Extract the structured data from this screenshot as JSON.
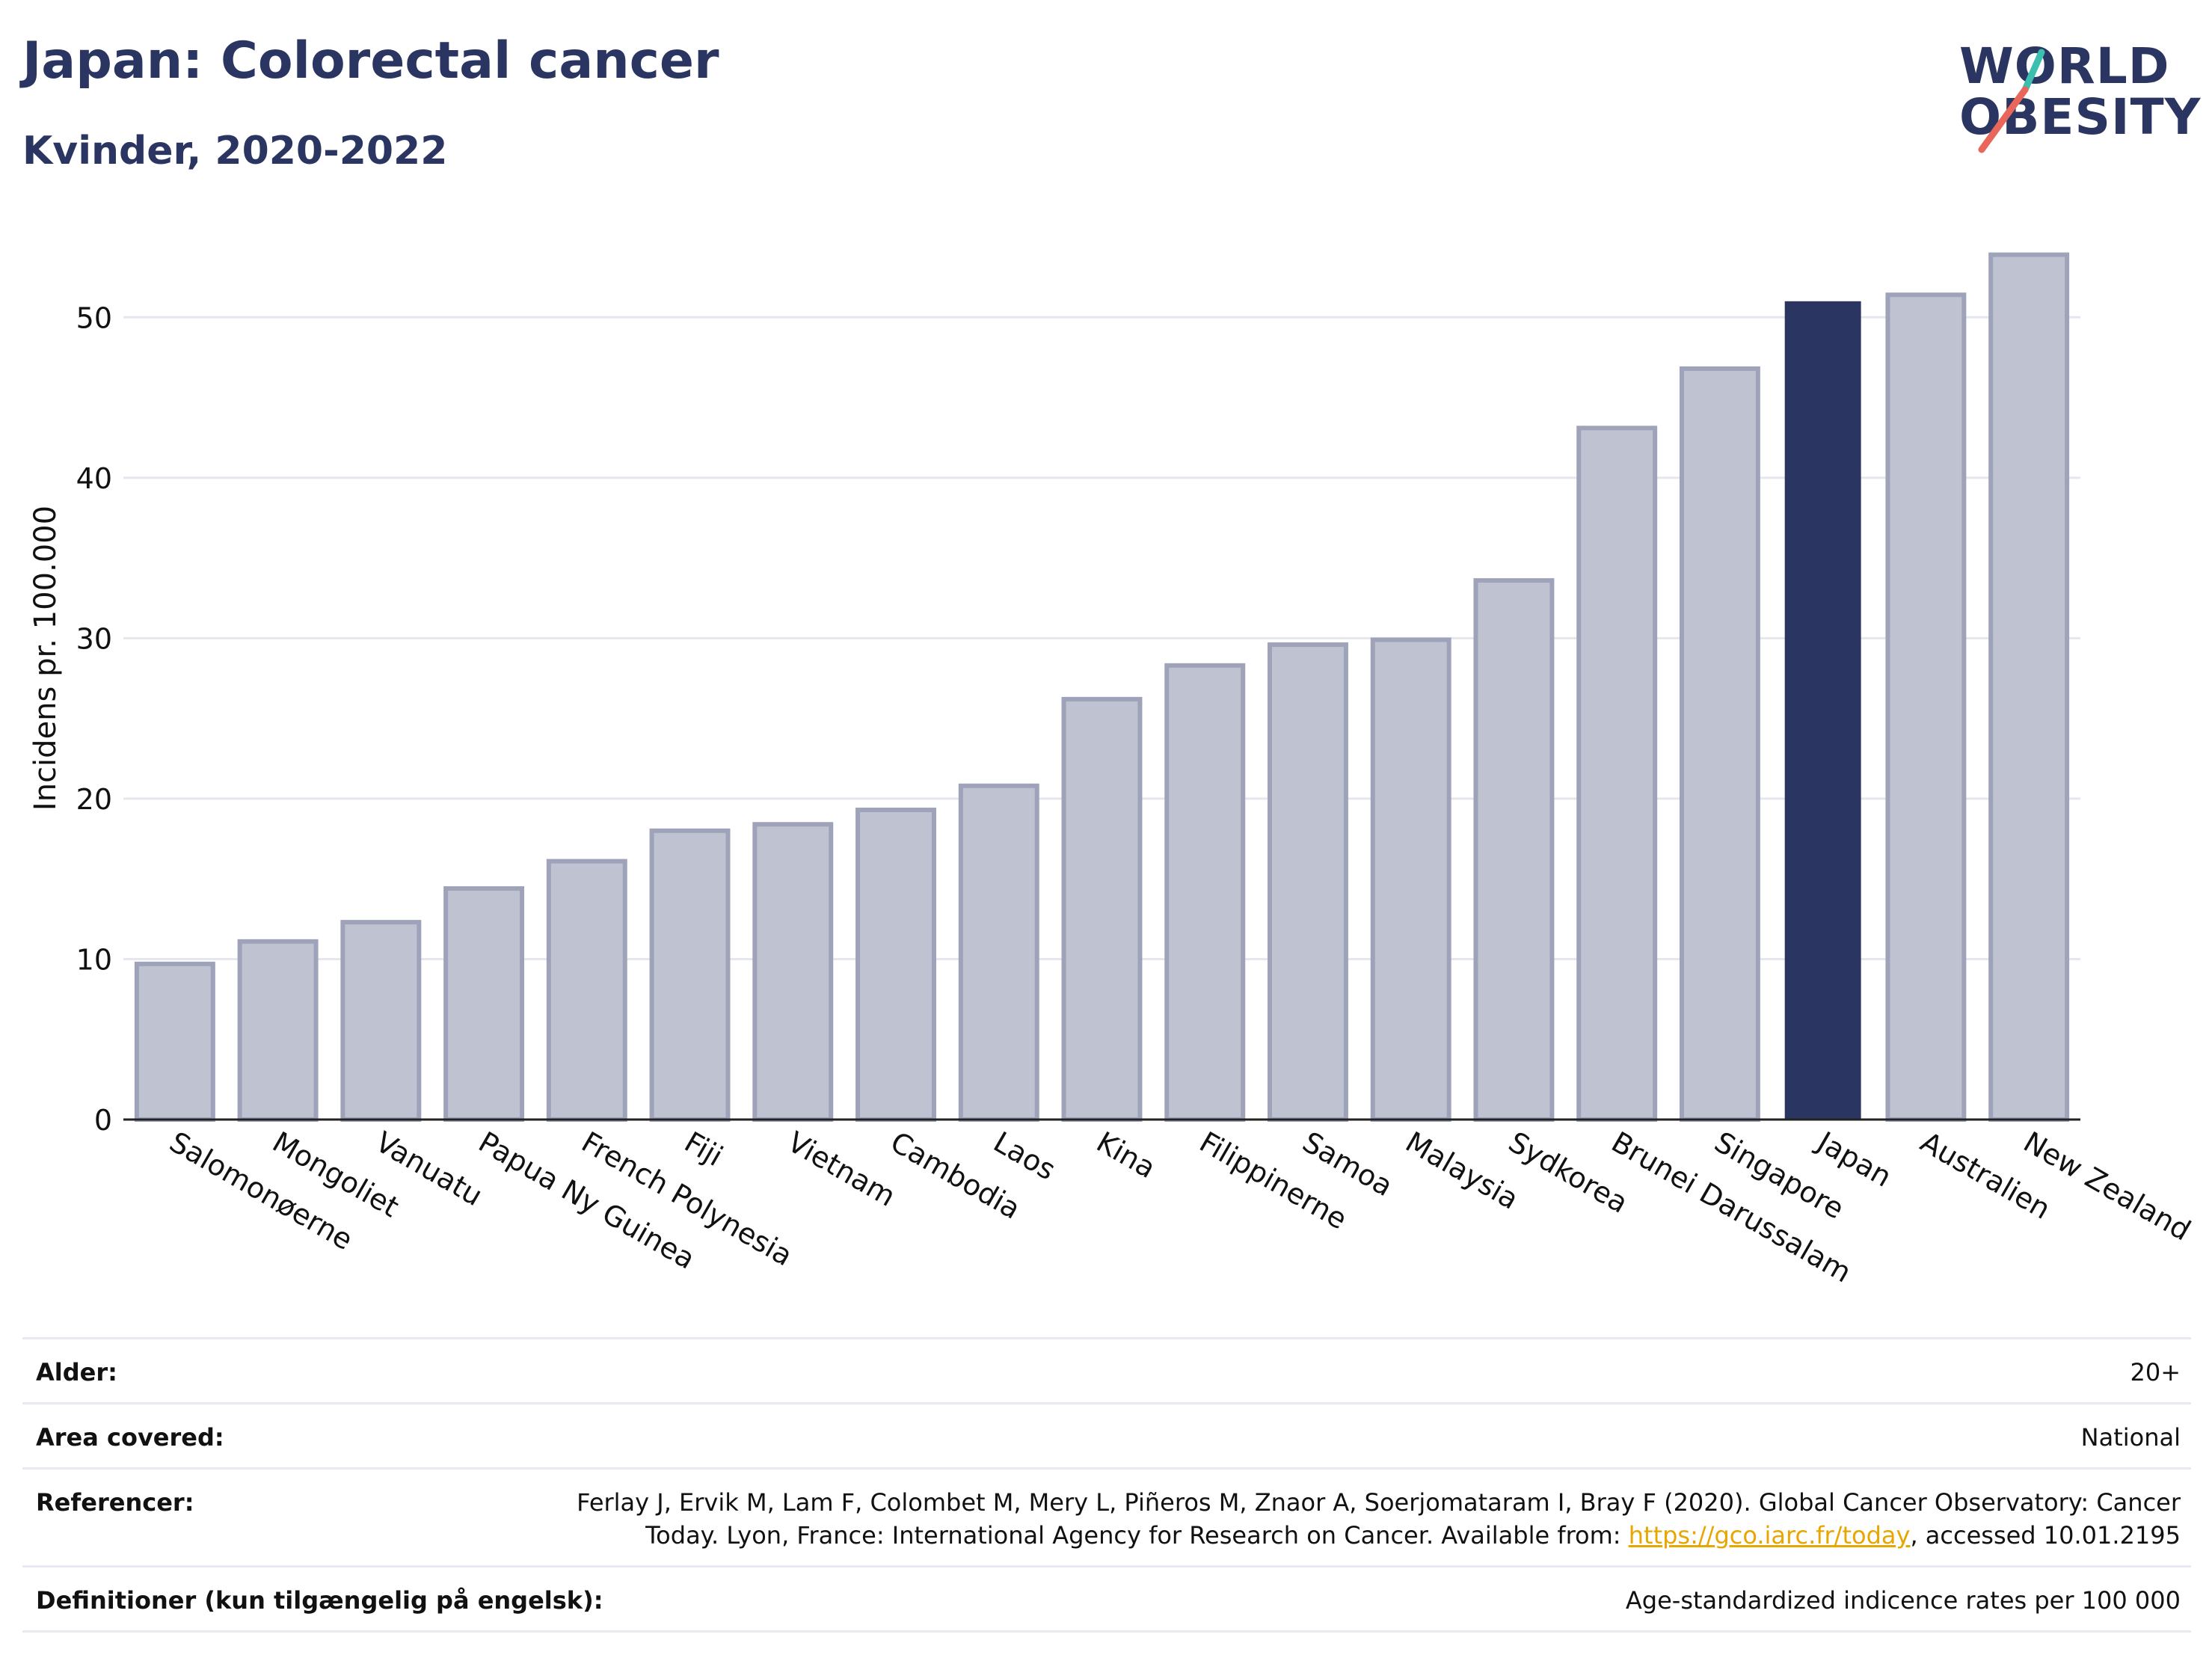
{
  "header": {
    "title": "Japan: Colorectal cancer",
    "subtitle": "Kvinder, 2020-2022"
  },
  "logo": {
    "line1": "WORLD",
    "line2": "OBESITY",
    "colors": {
      "text": "#2a3561",
      "slash_top": "#3cbfae",
      "slash_bottom": "#e8675a"
    }
  },
  "colors": {
    "highlight": "#2a3561",
    "bar_fill": "#bfc2d0",
    "bar_stroke": "#9ea3ba",
    "grid": "#e6e7ee",
    "axis": "#222222"
  },
  "chart_data": {
    "type": "bar",
    "ylabel": "Incidens pr. 100.000",
    "ylim": [
      0,
      55
    ],
    "yticks": [
      0,
      10,
      20,
      30,
      40,
      50
    ],
    "grid": true,
    "highlight": "Japan",
    "categories": [
      "Salomonøerne",
      "Mongoliet",
      "Vanuatu",
      "Papua Ny Guinea",
      "French Polynesia",
      "Fiji",
      "Vietnam",
      "Cambodia",
      "Laos",
      "Kina",
      "Filippinerne",
      "Samoa",
      "Malaysia",
      "Sydkorea",
      "Brunei Darussalam",
      "Singapore",
      "Japan",
      "Australien",
      "New Zealand"
    ],
    "values": [
      9.7,
      11.1,
      12.3,
      14.4,
      16.1,
      18.0,
      18.4,
      19.3,
      20.8,
      26.2,
      28.3,
      29.6,
      29.9,
      33.6,
      43.1,
      46.8,
      51.0,
      51.4,
      53.9
    ]
  },
  "info": {
    "rows": [
      {
        "label": "Alder:",
        "value": "20+"
      },
      {
        "label": "Area covered:",
        "value": "National"
      },
      {
        "label": "Referencer:",
        "value_before": "Ferlay J, Ervik M, Lam F, Colombet M, Mery L, Piñeros M, Znaor A, Soerjomataram I, Bray F (2020). Global Cancer Observatory: Cancer Today. Lyon, France: International Agency for Research on Cancer. Available from: ",
        "link": "https://gco.iarc.fr/today",
        "value_after": ", accessed 10.01.2195"
      },
      {
        "label": "Definitioner (kun tilgængelig på engelsk):",
        "value": "Age-standardized indicence rates per 100 000"
      }
    ]
  }
}
